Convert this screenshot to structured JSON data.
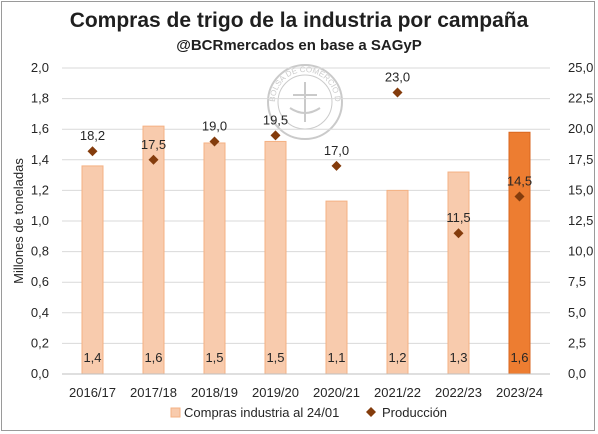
{
  "chart_data": {
    "type": "bar",
    "title": "Compras de trigo de la industria por campaña",
    "subtitle": "@BCRmercados en base a SAGyP",
    "ylabel": "Millones de toneladas",
    "categories": [
      "2016/17",
      "2017/18",
      "2018/19",
      "2019/20",
      "2020/21",
      "2021/22",
      "2022/23",
      "2023/24"
    ],
    "series": [
      {
        "name": "Compras industria al 24/01",
        "type": "bar",
        "axis": "left",
        "values": [
          1.36,
          1.62,
          1.51,
          1.52,
          1.13,
          1.2,
          1.32,
          1.58
        ],
        "labels": [
          "1,4",
          "1,6",
          "1,5",
          "1,5",
          "1,1",
          "1,2",
          "1,3",
          "1,6"
        ],
        "color": "#f8cbad",
        "highlight_color": "#ed7d31",
        "highlight_index": 7
      },
      {
        "name": "Producción",
        "type": "scatter",
        "axis": "right",
        "values": [
          18.2,
          17.5,
          19.0,
          19.5,
          17.0,
          23.0,
          11.5,
          14.5
        ],
        "labels": [
          "18,2",
          "17,5",
          "19,0",
          "19,5",
          "17,0",
          "23,0",
          "11,5",
          "14,5"
        ],
        "color": "#843c0c"
      }
    ],
    "y_left": {
      "min": 0,
      "max": 2,
      "step": 0.2,
      "ticks": [
        "0,0",
        "0,2",
        "0,4",
        "0,6",
        "0,8",
        "1,0",
        "1,2",
        "1,4",
        "1,6",
        "1,8",
        "2,0"
      ]
    },
    "y_right": {
      "min": 0,
      "max": 25,
      "step": 2.5,
      "ticks": [
        "0,0",
        "2,5",
        "5,0",
        "7,5",
        "10,0",
        "12,5",
        "15,0",
        "17,5",
        "20,0",
        "22,5",
        "25,0"
      ]
    },
    "grid": true,
    "legend_position": "bottom"
  },
  "watermark": {
    "text": "BOLSA DE COMERCIO DE ROSARIO"
  }
}
